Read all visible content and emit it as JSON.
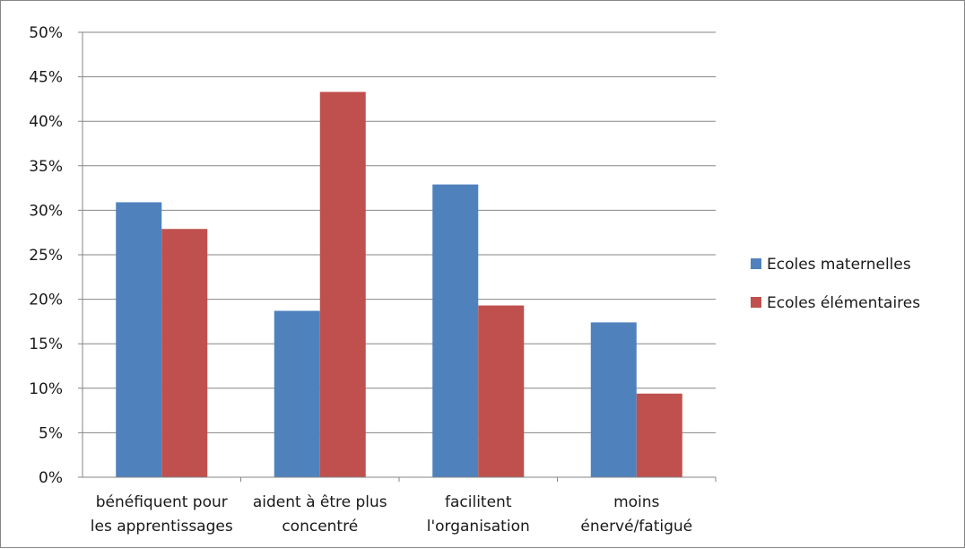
{
  "chart_data": {
    "type": "bar",
    "title": "",
    "xlabel": "",
    "ylabel": "",
    "ylim": [
      0,
      0.5
    ],
    "yticks": [
      "0%",
      "5%",
      "10%",
      "15%",
      "20%",
      "25%",
      "30%",
      "35%",
      "40%",
      "45%",
      "50%"
    ],
    "grid": true,
    "legend_position": "right",
    "categories": [
      [
        "bénéfiquent pour",
        "les apprentissages"
      ],
      [
        "aident à être plus",
        "concentré"
      ],
      [
        "facilitent",
        "l'organisation"
      ],
      [
        "moins",
        "énervé/fatigué"
      ]
    ],
    "series": [
      {
        "name": "Ecoles maternelles",
        "color": "#4f81bd",
        "values": [
          0.309,
          0.187,
          0.329,
          0.174
        ]
      },
      {
        "name": "Ecoles élémentaires",
        "color": "#c0504d",
        "values": [
          0.279,
          0.433,
          0.193,
          0.094
        ]
      }
    ]
  }
}
